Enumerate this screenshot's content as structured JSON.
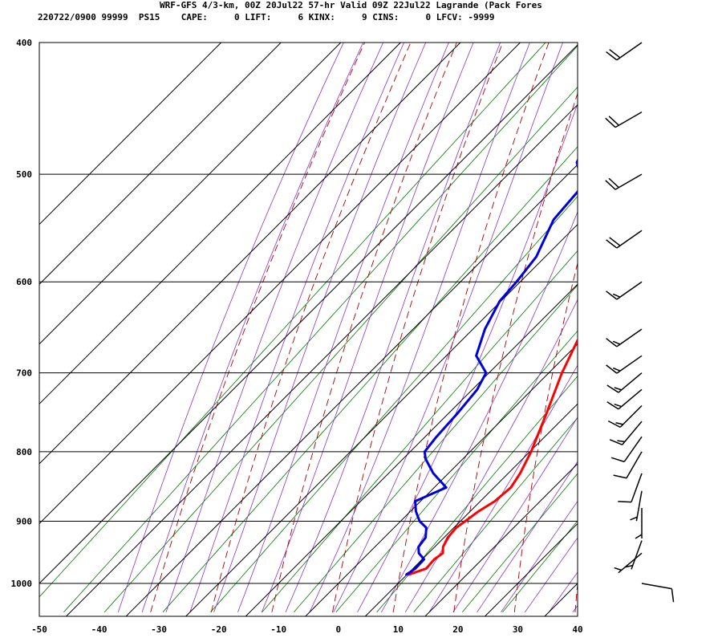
{
  "header": {
    "line1": "WRF-GFS 4/3-km, 00Z 20Jul22 57-hr Valid 09Z 22Jul22 Lagrande (Pack Fores",
    "line2": "220722/0900 99999  PS15    CAPE:     0 LIFT:     6 KINX:     9 CINS:     0 LFCV: -9999"
  },
  "chart_data": {
    "type": "line",
    "subtype": "skew-t log-p sounding",
    "title": "WRF-GFS 4/3-km, 00Z 20Jul22 57-hr Valid 09Z 22Jul22 Lagrande (Pack Fores",
    "xlim": [
      -50,
      40
    ],
    "ylim": [
      1040,
      400
    ],
    "y_scale": "log",
    "x_ticks": [
      -50,
      -40,
      -30,
      -20,
      -10,
      0,
      10,
      20,
      30,
      40
    ],
    "y_ticks": [
      400,
      500,
      600,
      700,
      800,
      900,
      1000
    ],
    "grid": true,
    "colors": {
      "temperature": "#ff0000",
      "dewpoint": "#0000dd",
      "dry_adiabat": "#aa0000",
      "moist_adiabat": "#8833cc",
      "mixing_ratio": "#007700",
      "grid": "#000000",
      "wind_barb": "#000000"
    },
    "series": [
      {
        "key": "temperature",
        "p": [
          985,
          975,
          960,
          950,
          940,
          925,
          910,
          900,
          885,
          870,
          850,
          830,
          800,
          750,
          700,
          650,
          620,
          600,
          550,
          520,
          500,
          470,
          440,
          400
        ],
        "x": [
          10.3,
          12.2,
          12.0,
          12.4,
          11.4,
          10.6,
          10.4,
          10.8,
          11.4,
          12.4,
          12.8,
          12.0,
          10.2,
          6.4,
          2.2,
          -1.6,
          -3.8,
          -5.8,
          -9.9,
          -13.1,
          -15.3,
          -19.0,
          -23.0,
          -29.0
        ]
      },
      {
        "key": "dewpoint",
        "p": [
          985,
          975,
          960,
          950,
          940,
          925,
          910,
          900,
          885,
          870,
          850,
          830,
          810,
          800,
          780,
          750,
          720,
          700,
          680,
          650,
          620,
          600,
          575,
          540,
          510,
          490,
          470,
          450,
          430,
          400
        ],
        "x": [
          9.9,
          10.4,
          10.3,
          8.4,
          7.3,
          6.9,
          5.4,
          3.2,
          0.9,
          -0.9,
          2.0,
          -2.5,
          -6.2,
          -7.6,
          -8.1,
          -8.5,
          -9.2,
          -10.5,
          -15.0,
          -18.0,
          -20.2,
          -20.6,
          -21.5,
          -24.8,
          -25.6,
          -30.5,
          -32.7,
          -37.0,
          -40.4,
          -46.3
        ]
      }
    ],
    "wind_barbs": [
      {
        "p": 400,
        "dir_deg": 235,
        "speed_kt": 20
      },
      {
        "p": 450,
        "dir_deg": 240,
        "speed_kt": 20
      },
      {
        "p": 500,
        "dir_deg": 240,
        "speed_kt": 20
      },
      {
        "p": 550,
        "dir_deg": 235,
        "speed_kt": 20
      },
      {
        "p": 600,
        "dir_deg": 235,
        "speed_kt": 15
      },
      {
        "p": 650,
        "dir_deg": 235,
        "speed_kt": 15
      },
      {
        "p": 680,
        "dir_deg": 235,
        "speed_kt": 15
      },
      {
        "p": 700,
        "dir_deg": 230,
        "speed_kt": 15
      },
      {
        "p": 720,
        "dir_deg": 230,
        "speed_kt": 15
      },
      {
        "p": 740,
        "dir_deg": 225,
        "speed_kt": 15
      },
      {
        "p": 760,
        "dir_deg": 220,
        "speed_kt": 15
      },
      {
        "p": 780,
        "dir_deg": 215,
        "speed_kt": 10
      },
      {
        "p": 800,
        "dir_deg": 210,
        "speed_kt": 10
      },
      {
        "p": 830,
        "dir_deg": 200,
        "speed_kt": 10
      },
      {
        "p": 855,
        "dir_deg": 190,
        "speed_kt": 5
      },
      {
        "p": 880,
        "dir_deg": 180,
        "speed_kt": 5
      },
      {
        "p": 930,
        "dir_deg": 200,
        "speed_kt": 5
      },
      {
        "p": 950,
        "dir_deg": 230,
        "speed_kt": 5
      },
      {
        "p": 1000,
        "dir_deg": 100,
        "speed_kt": 10
      }
    ]
  }
}
